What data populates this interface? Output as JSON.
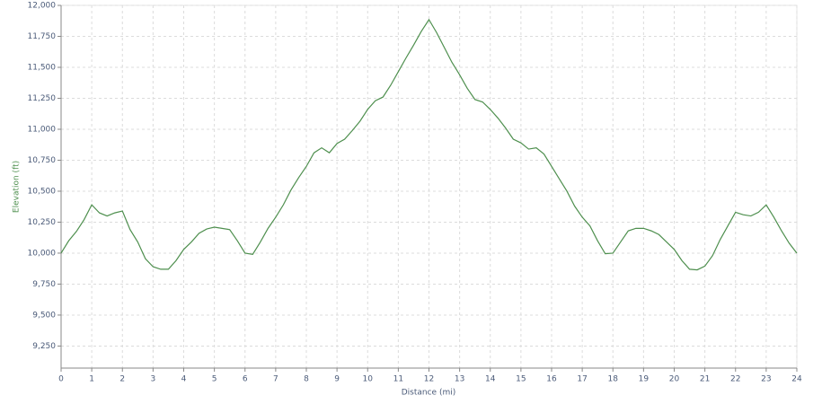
{
  "chart_data": {
    "type": "line",
    "x_label": "Distance (mi)",
    "y_label": "Elevation (ft)",
    "x": [
      0,
      0.25,
      0.5,
      0.75,
      1,
      1.25,
      1.5,
      1.75,
      2,
      2.25,
      2.5,
      2.75,
      3,
      3.25,
      3.5,
      3.75,
      4,
      4.25,
      4.5,
      4.75,
      5,
      5.25,
      5.5,
      5.75,
      6,
      6.25,
      6.5,
      6.75,
      7,
      7.25,
      7.5,
      7.75,
      8,
      8.25,
      8.5,
      8.75,
      9,
      9.25,
      9.5,
      9.75,
      10,
      10.25,
      10.5,
      10.75,
      11,
      11.25,
      11.5,
      11.75,
      12,
      12.25,
      12.5,
      12.75,
      13,
      13.25,
      13.5,
      13.75,
      14,
      14.25,
      14.5,
      14.75,
      15,
      15.25,
      15.5,
      15.75,
      16,
      16.25,
      16.5,
      16.75,
      17,
      17.25,
      17.5,
      17.75,
      18,
      18.25,
      18.5,
      18.75,
      19,
      19.25,
      19.5,
      19.75,
      20,
      20.25,
      20.5,
      20.75,
      21,
      21.25,
      21.5,
      21.75,
      22,
      22.25,
      22.5,
      22.75,
      23,
      23.25,
      23.5,
      23.75,
      24
    ],
    "series": [
      {
        "color": "#4e8f4e",
        "values": [
          10000,
          10100,
          10175,
          10270,
          10390,
          10325,
          10300,
          10325,
          10340,
          10190,
          10090,
          9955,
          9890,
          9870,
          9870,
          9940,
          10030,
          10090,
          10160,
          10195,
          10210,
          10200,
          10190,
          10100,
          10000,
          9990,
          10090,
          10200,
          10290,
          10390,
          10510,
          10610,
          10700,
          10810,
          10850,
          10810,
          10885,
          10920,
          10990,
          11065,
          11160,
          11230,
          11260,
          11355,
          11465,
          11575,
          11680,
          11790,
          11885,
          11780,
          11660,
          11540,
          11440,
          11330,
          11240,
          11220,
          11160,
          11090,
          11010,
          10920,
          10890,
          10840,
          10850,
          10800,
          10700,
          10600,
          10500,
          10380,
          10290,
          10220,
          10100,
          9995,
          10000,
          10090,
          10180,
          10200,
          10200,
          10180,
          10150,
          10090,
          10030,
          9940,
          9870,
          9865,
          9895,
          9980,
          10110,
          10220,
          10330,
          10310,
          10300,
          10330,
          10390,
          10290,
          10180,
          10080,
          10000
        ]
      }
    ],
    "xlim": [
      0,
      24
    ],
    "xticks": [
      0,
      1,
      2,
      3,
      4,
      5,
      6,
      7,
      8,
      9,
      10,
      11,
      12,
      13,
      14,
      15,
      16,
      17,
      18,
      19,
      20,
      21,
      22,
      23,
      24
    ],
    "ylim": [
      9072,
      12000
    ],
    "yticks": [
      {
        "value": 9250,
        "label": "9,250"
      },
      {
        "value": 9500,
        "label": "9,500"
      },
      {
        "value": 9750,
        "label": "9,750"
      },
      {
        "value": 10000,
        "label": "10,000"
      },
      {
        "value": 10250,
        "label": "10,250"
      },
      {
        "value": 10500,
        "label": "10,500"
      },
      {
        "value": 10750,
        "label": "10,750"
      },
      {
        "value": 11000,
        "label": "11,000"
      },
      {
        "value": 11250,
        "label": "11,250"
      },
      {
        "value": 11500,
        "label": "11,500"
      },
      {
        "value": 11750,
        "label": "11,750"
      },
      {
        "value": 12000,
        "label": "12,000"
      }
    ],
    "grid": true
  }
}
